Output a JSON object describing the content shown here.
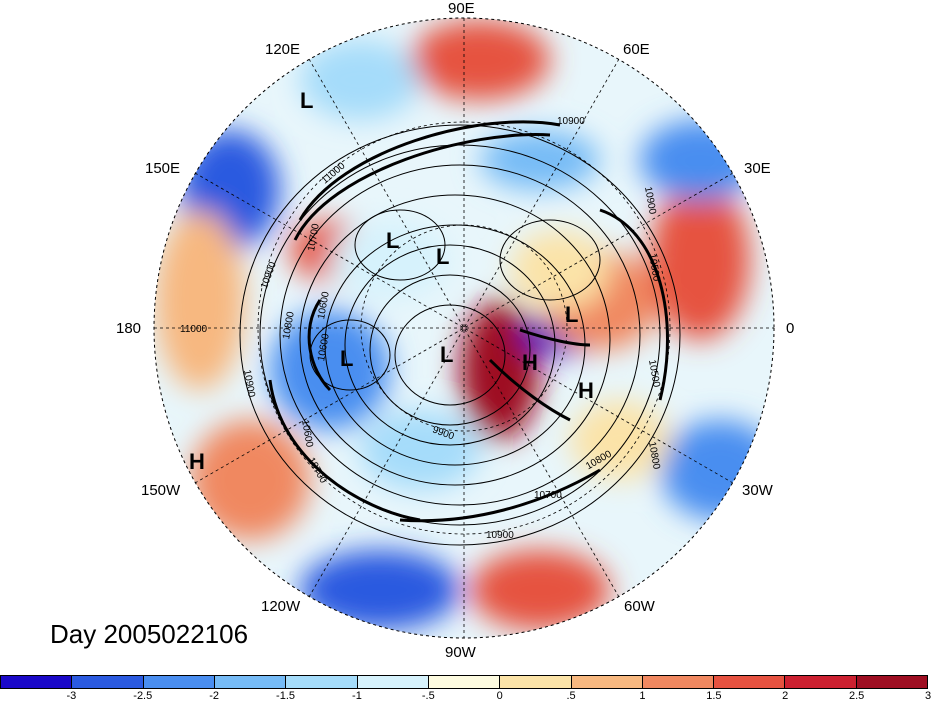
{
  "map": {
    "day_label": "Day 2005022106",
    "longitude_labels": {
      "lon_90E": "90E",
      "lon_60E": "60E",
      "lon_120E": "120E",
      "lon_30E": "30E",
      "lon_150E": "150E",
      "lon_0": "0",
      "lon_180": "180",
      "lon_30W": "30W",
      "lon_150W": "150W",
      "lon_60W": "60W",
      "lon_120W": "120W",
      "lon_90W": "90W"
    },
    "pressure_centers": [
      {
        "label": "L"
      },
      {
        "label": "L"
      },
      {
        "label": "L"
      },
      {
        "label": "L"
      },
      {
        "label": "L"
      },
      {
        "label": "L"
      },
      {
        "label": "H"
      },
      {
        "label": "H"
      },
      {
        "label": "H"
      }
    ],
    "contour_labels": [
      "10900",
      "10900",
      "10900",
      "10800",
      "10700",
      "10600",
      "10500",
      "10800",
      "11000",
      "10900",
      "10600",
      "10700",
      "10600",
      "10500",
      "10800",
      "10700",
      "10900",
      "9900",
      "11000"
    ],
    "colorbar": {
      "colors": [
        "#1a08c8",
        "#2b5ae0",
        "#4a8ef0",
        "#76bbf6",
        "#a5dcfa",
        "#d6f2fc",
        "#fdfbe0",
        "#fbe3a8",
        "#f7b880",
        "#f08860",
        "#e65240",
        "#cc2030",
        "#9e0e22"
      ],
      "ticks": [
        "-3",
        "-2.5",
        "-2",
        "-1.5",
        "-1",
        "-.5",
        "0",
        ".5",
        "1",
        "1.5",
        "2",
        "2.5",
        "3"
      ]
    }
  }
}
